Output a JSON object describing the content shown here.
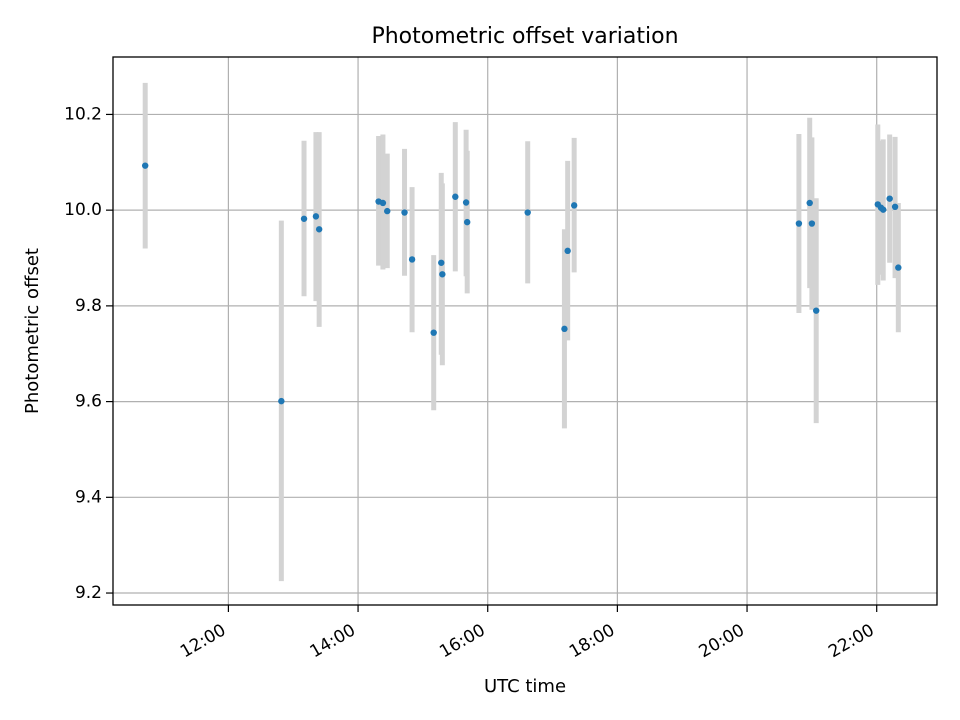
{
  "chart_data": {
    "type": "scatter",
    "title": "Photometric offset variation",
    "xlabel": "UTC time",
    "ylabel": "Photometric offset",
    "xlim_hours": [
      10.22,
      22.93
    ],
    "ylim": [
      9.175,
      10.32
    ],
    "grid": true,
    "x_ticks": [
      {
        "hour": 12,
        "label": "12:00"
      },
      {
        "hour": 14,
        "label": "14:00"
      },
      {
        "hour": 16,
        "label": "16:00"
      },
      {
        "hour": 18,
        "label": "18:00"
      },
      {
        "hour": 20,
        "label": "20:00"
      },
      {
        "hour": 22,
        "label": "22:00"
      }
    ],
    "y_ticks": [
      {
        "value": 9.2,
        "label": "9.2"
      },
      {
        "value": 9.4,
        "label": "9.4"
      },
      {
        "value": 9.6,
        "label": "9.6"
      },
      {
        "value": 9.8,
        "label": "9.8"
      },
      {
        "value": 10.0,
        "label": "10.0"
      },
      {
        "value": 10.2,
        "label": "10.2"
      }
    ],
    "marker_color": "#1f77b4",
    "errorbar_color": "#d3d3d3",
    "points": [
      {
        "t": "10:43",
        "y": 10.093,
        "lo": 9.92,
        "hi": 10.266
      },
      {
        "t": "12:49",
        "y": 9.601,
        "lo": 9.225,
        "hi": 9.978
      },
      {
        "t": "13:10",
        "y": 9.982,
        "lo": 9.82,
        "hi": 10.145
      },
      {
        "t": "13:21",
        "y": 9.987,
        "lo": 9.81,
        "hi": 10.163
      },
      {
        "t": "13:24",
        "y": 9.96,
        "lo": 9.756,
        "hi": 10.163
      },
      {
        "t": "14:19",
        "y": 10.018,
        "lo": 9.884,
        "hi": 10.155
      },
      {
        "t": "14:23",
        "y": 10.015,
        "lo": 9.876,
        "hi": 10.158
      },
      {
        "t": "14:27",
        "y": 9.998,
        "lo": 9.879,
        "hi": 10.118
      },
      {
        "t": "14:43",
        "y": 9.995,
        "lo": 9.863,
        "hi": 10.128
      },
      {
        "t": "14:50",
        "y": 9.897,
        "lo": 9.745,
        "hi": 10.048
      },
      {
        "t": "15:10",
        "y": 9.744,
        "lo": 9.582,
        "hi": 9.906
      },
      {
        "t": "15:17",
        "y": 9.89,
        "lo": 9.698,
        "hi": 10.078
      },
      {
        "t": "15:18",
        "y": 9.866,
        "lo": 9.676,
        "hi": 10.056
      },
      {
        "t": "15:30",
        "y": 10.028,
        "lo": 9.872,
        "hi": 10.184
      },
      {
        "t": "15:40",
        "y": 10.016,
        "lo": 9.862,
        "hi": 10.168
      },
      {
        "t": "15:41",
        "y": 9.975,
        "lo": 9.826,
        "hi": 10.124
      },
      {
        "t": "16:37",
        "y": 9.995,
        "lo": 9.847,
        "hi": 10.144
      },
      {
        "t": "17:11",
        "y": 9.752,
        "lo": 9.544,
        "hi": 9.96
      },
      {
        "t": "17:14",
        "y": 9.915,
        "lo": 9.728,
        "hi": 10.103
      },
      {
        "t": "17:20",
        "y": 10.01,
        "lo": 9.87,
        "hi": 10.151
      },
      {
        "t": "20:48",
        "y": 9.972,
        "lo": 9.785,
        "hi": 10.159
      },
      {
        "t": "20:58",
        "y": 10.015,
        "lo": 9.837,
        "hi": 10.193
      },
      {
        "t": "21:00",
        "y": 9.972,
        "lo": 9.792,
        "hi": 10.152
      },
      {
        "t": "21:04",
        "y": 9.79,
        "lo": 9.555,
        "hi": 10.025
      },
      {
        "t": "22:01",
        "y": 10.012,
        "lo": 9.844,
        "hi": 10.179
      },
      {
        "t": "22:04",
        "y": 10.005,
        "lo": 9.865,
        "hi": 10.145
      },
      {
        "t": "22:06",
        "y": 10.001,
        "lo": 9.853,
        "hi": 10.148
      },
      {
        "t": "22:12",
        "y": 10.024,
        "lo": 9.89,
        "hi": 10.158
      },
      {
        "t": "22:17",
        "y": 10.007,
        "lo": 9.858,
        "hi": 10.153
      },
      {
        "t": "22:20",
        "y": 9.88,
        "lo": 9.745,
        "hi": 10.015
      }
    ]
  }
}
